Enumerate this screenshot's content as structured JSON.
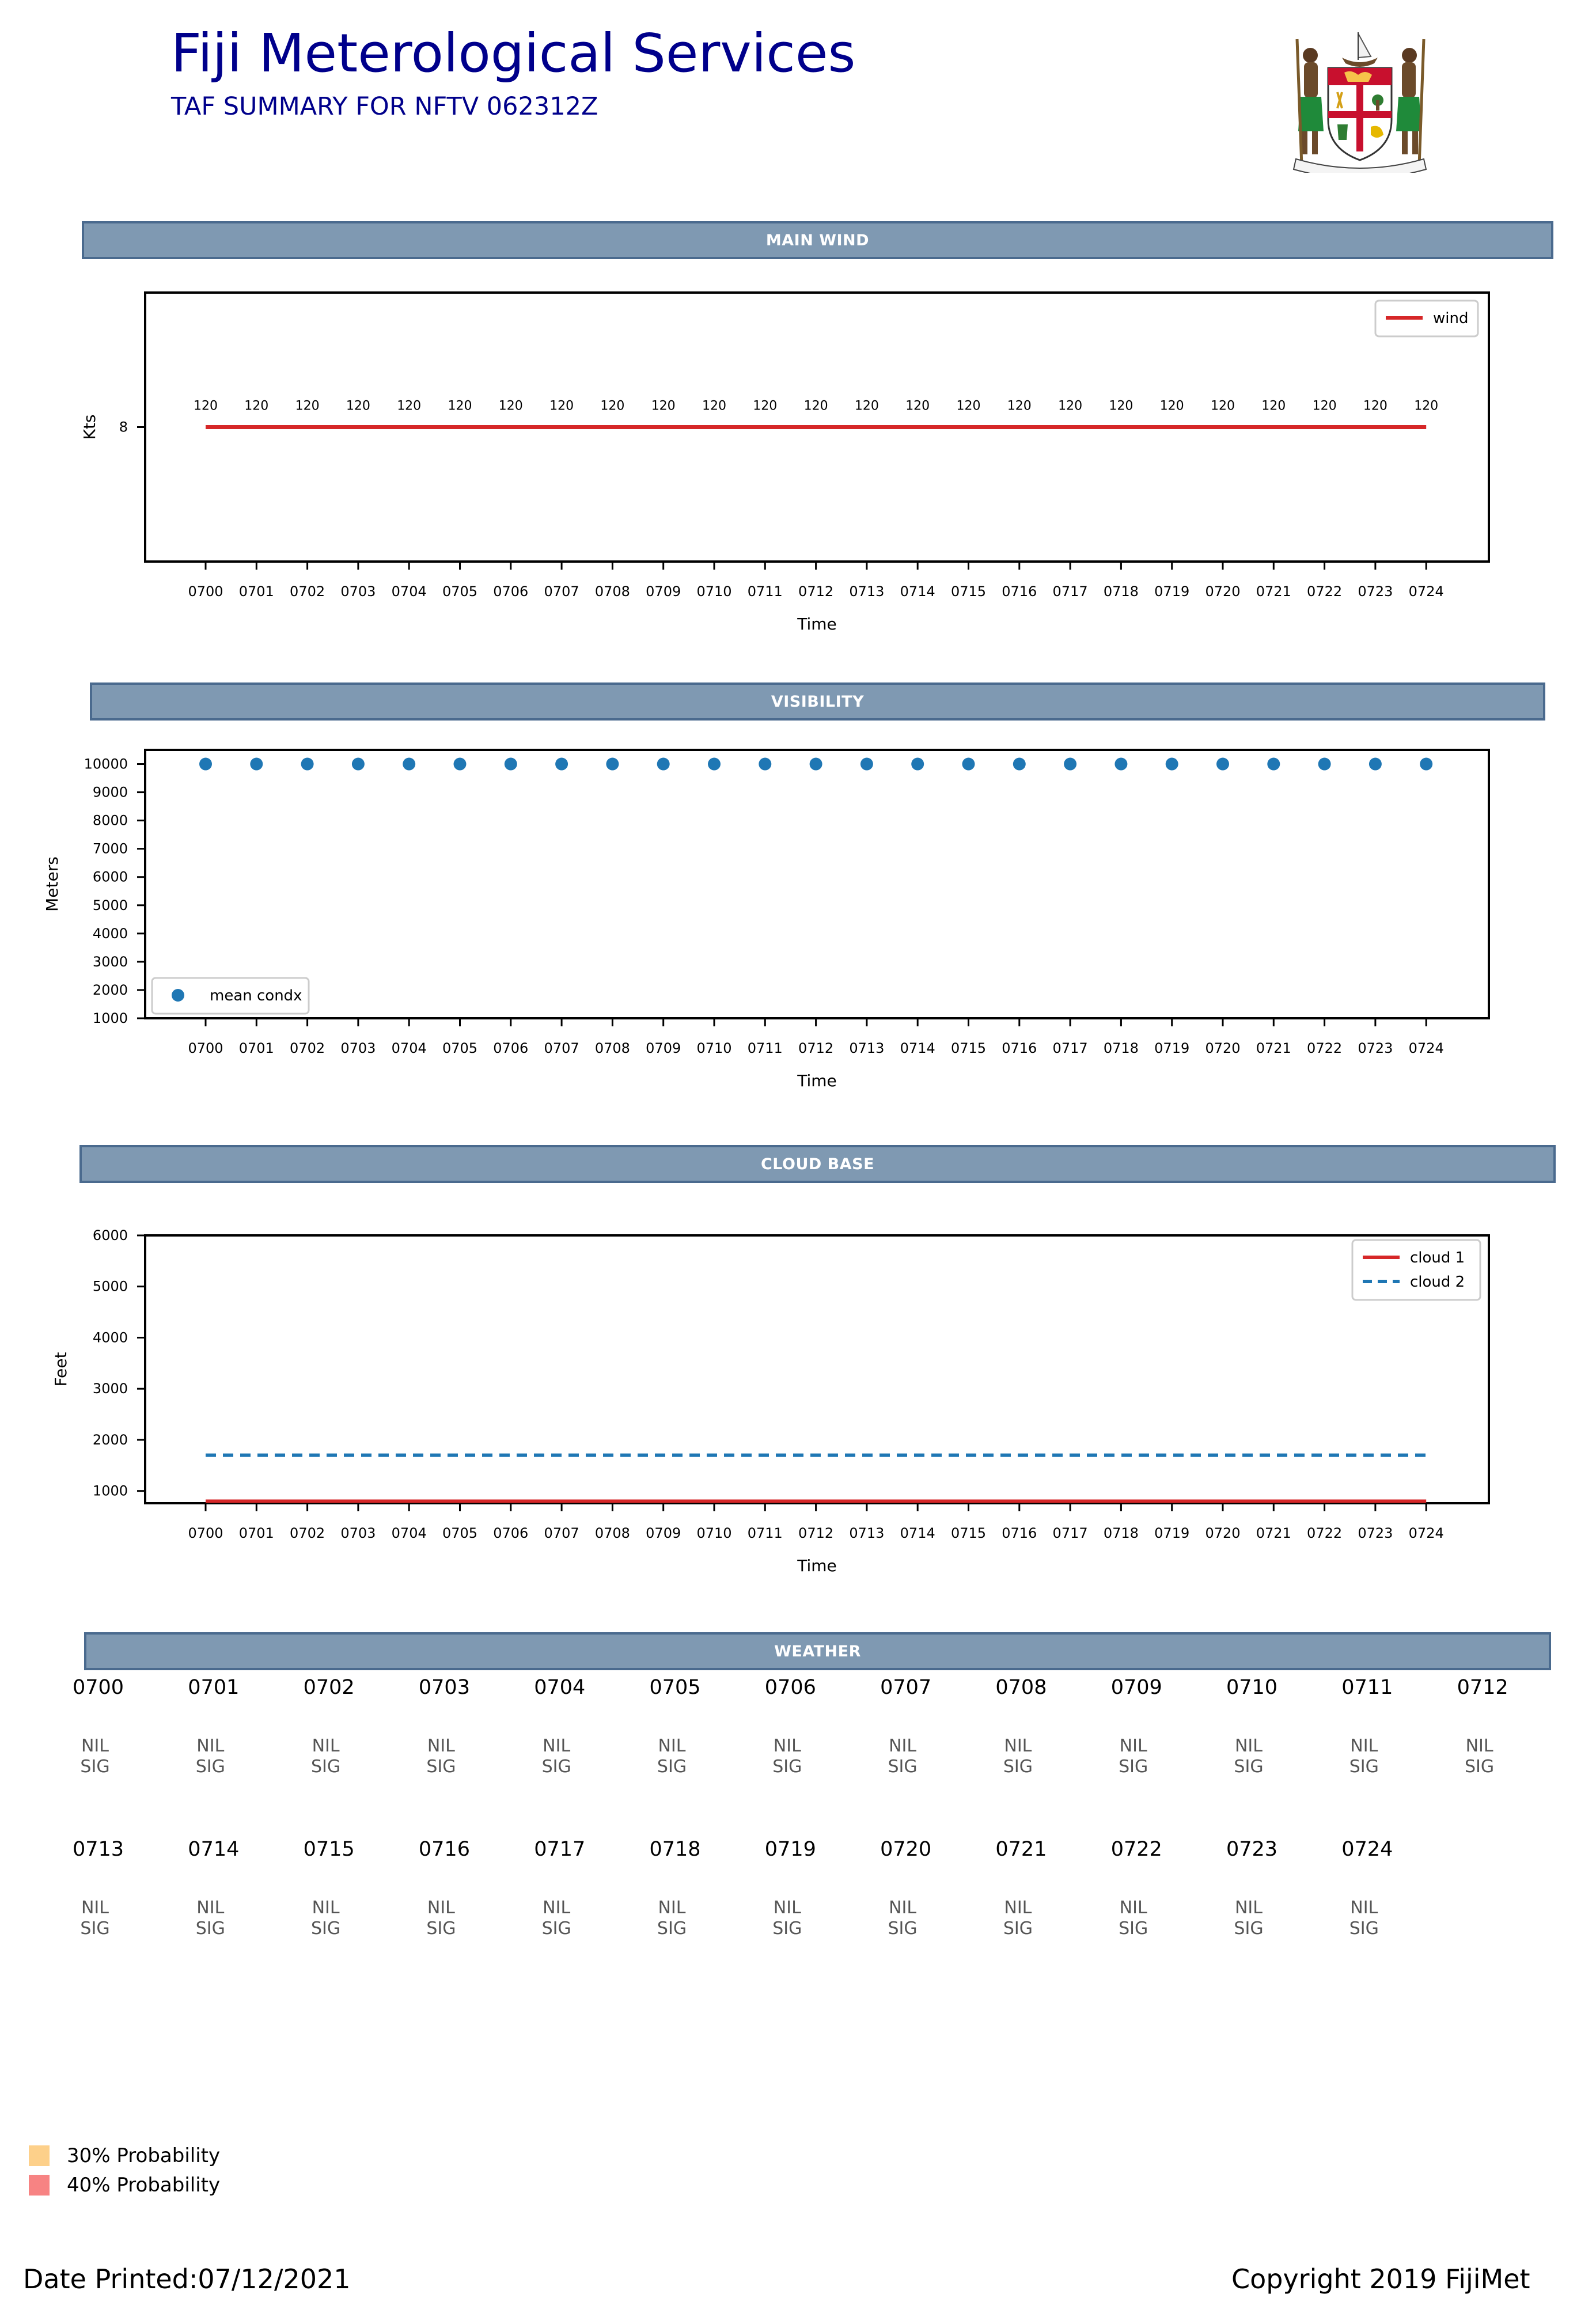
{
  "header": {
    "title": "Fiji Meterological Services",
    "subtitle": "TAF SUMMARY FOR NFTV 062312Z",
    "crest_motto": "Rerevaka na Kalou ka doka na Tui"
  },
  "sections": {
    "wind": "MAIN WIND",
    "visibility": "VISIBILITY",
    "cloud": "CLOUD BASE",
    "weather": "WEATHER"
  },
  "chart_data": [
    {
      "type": "line",
      "x": [
        "0700",
        "0701",
        "0702",
        "0703",
        "0704",
        "0705",
        "0706",
        "0707",
        "0708",
        "0709",
        "0710",
        "0711",
        "0712",
        "0713",
        "0714",
        "0715",
        "0716",
        "0717",
        "0718",
        "0719",
        "0720",
        "0721",
        "0722",
        "0723",
        "0724"
      ],
      "series": [
        {
          "name": "wind",
          "values": [
            8,
            8,
            8,
            8,
            8,
            8,
            8,
            8,
            8,
            8,
            8,
            8,
            8,
            8,
            8,
            8,
            8,
            8,
            8,
            8,
            8,
            8,
            8,
            8,
            8
          ],
          "color": "#d62728",
          "style": "solid"
        }
      ],
      "data_labels": [
        "120",
        "120",
        "120",
        "120",
        "120",
        "120",
        "120",
        "120",
        "120",
        "120",
        "120",
        "120",
        "120",
        "120",
        "120",
        "120",
        "120",
        "120",
        "120",
        "120",
        "120",
        "120",
        "120",
        "120",
        "120"
      ],
      "xlabel": "Time",
      "ylabel": "Kts",
      "yticks": [
        8
      ],
      "ylim": [
        0,
        16
      ],
      "legend": "top-right"
    },
    {
      "type": "scatter",
      "x": [
        "0700",
        "0701",
        "0702",
        "0703",
        "0704",
        "0705",
        "0706",
        "0707",
        "0708",
        "0709",
        "0710",
        "0711",
        "0712",
        "0713",
        "0714",
        "0715",
        "0716",
        "0717",
        "0718",
        "0719",
        "0720",
        "0721",
        "0722",
        "0723",
        "0724"
      ],
      "series": [
        {
          "name": "mean condx",
          "values": [
            10000,
            10000,
            10000,
            10000,
            10000,
            10000,
            10000,
            10000,
            10000,
            10000,
            10000,
            10000,
            10000,
            10000,
            10000,
            10000,
            10000,
            10000,
            10000,
            10000,
            10000,
            10000,
            10000,
            10000,
            10000
          ],
          "color": "#1f77b4"
        }
      ],
      "xlabel": "Time",
      "ylabel": "Meters",
      "yticks": [
        1000,
        2000,
        3000,
        4000,
        5000,
        6000,
        7000,
        8000,
        9000,
        10000
      ],
      "ylim": [
        1000,
        10500
      ],
      "legend": "bottom-left"
    },
    {
      "type": "line",
      "x": [
        "0700",
        "0701",
        "0702",
        "0703",
        "0704",
        "0705",
        "0706",
        "0707",
        "0708",
        "0709",
        "0710",
        "0711",
        "0712",
        "0713",
        "0714",
        "0715",
        "0716",
        "0717",
        "0718",
        "0719",
        "0720",
        "0721",
        "0722",
        "0723",
        "0724"
      ],
      "series": [
        {
          "name": "cloud 1",
          "values": [
            800,
            800,
            800,
            800,
            800,
            800,
            800,
            800,
            800,
            800,
            800,
            800,
            800,
            800,
            800,
            800,
            800,
            800,
            800,
            800,
            800,
            800,
            800,
            800,
            800
          ],
          "color": "#d62728",
          "style": "solid"
        },
        {
          "name": "cloud 2",
          "values": [
            1700,
            1700,
            1700,
            1700,
            1700,
            1700,
            1700,
            1700,
            1700,
            1700,
            1700,
            1700,
            1700,
            1700,
            1700,
            1700,
            1700,
            1700,
            1700,
            1700,
            1700,
            1700,
            1700,
            1700,
            1700
          ],
          "color": "#1f77b4",
          "style": "dashed"
        }
      ],
      "xlabel": "Time",
      "ylabel": "Feet",
      "yticks": [
        1000,
        2000,
        3000,
        4000,
        5000,
        6000
      ],
      "ylim": [
        760,
        6000
      ],
      "legend": "top-right"
    }
  ],
  "weather": {
    "times": [
      "0700",
      "0701",
      "0702",
      "0703",
      "0704",
      "0705",
      "0706",
      "0707",
      "0708",
      "0709",
      "0710",
      "0711",
      "0712",
      "0713",
      "0714",
      "0715",
      "0716",
      "0717",
      "0718",
      "0719",
      "0720",
      "0721",
      "0722",
      "0723",
      "0724"
    ],
    "codes": [
      "NIL SIG",
      "NIL SIG",
      "NIL SIG",
      "NIL SIG",
      "NIL SIG",
      "NIL SIG",
      "NIL SIG",
      "NIL SIG",
      "NIL SIG",
      "NIL SIG",
      "NIL SIG",
      "NIL SIG",
      "NIL SIG",
      "NIL SIG",
      "NIL SIG",
      "NIL SIG",
      "NIL SIG",
      "NIL SIG",
      "NIL SIG",
      "NIL SIG",
      "NIL SIG",
      "NIL SIG",
      "NIL SIG",
      "NIL SIG",
      "NIL SIG"
    ]
  },
  "probability_legend": [
    {
      "label": "30% Probability",
      "color": "#fdd08a"
    },
    {
      "label": "40% Probability",
      "color": "#f78383"
    }
  ],
  "footer": {
    "printed": "Date Printed:07/12/2021",
    "copyright": "Copyright 2019 FijiMet"
  }
}
